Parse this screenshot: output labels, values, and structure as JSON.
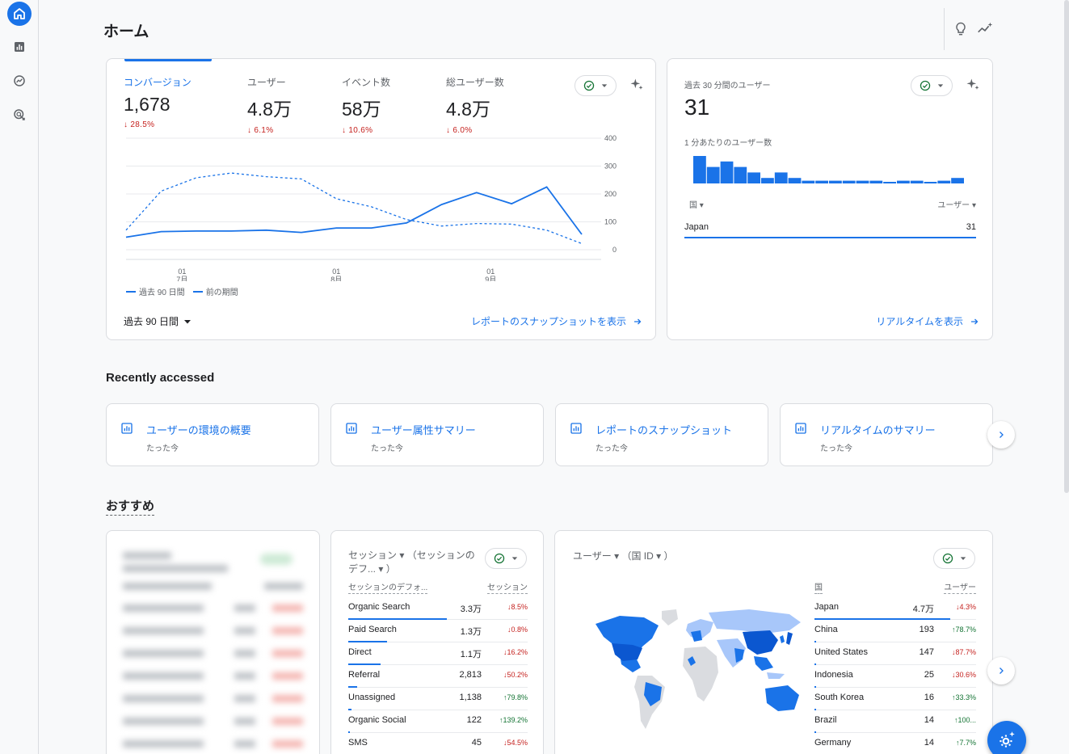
{
  "page": {
    "title": "ホーム"
  },
  "rail": {
    "items": [
      {
        "icon": "home-icon",
        "active": true
      },
      {
        "icon": "reports-icon",
        "active": false
      },
      {
        "icon": "explore-icon",
        "active": false
      },
      {
        "icon": "advertising-icon",
        "active": false
      }
    ]
  },
  "main_card": {
    "metrics": [
      {
        "label": "コンバージョン",
        "value": "1,678",
        "delta": "28.5%",
        "direction": "down"
      },
      {
        "label": "ユーザー",
        "value": "4.8万",
        "delta": "6.1%",
        "direction": "down"
      },
      {
        "label": "イベント数",
        "value": "58万",
        "delta": "10.6%",
        "direction": "down"
      },
      {
        "label": "総ユーザー数",
        "value": "4.8万",
        "delta": "6.0%",
        "direction": "down"
      }
    ],
    "legend": {
      "current": "過去 90 日間",
      "previous": "前の期間"
    },
    "period_select": "過去 90 日間",
    "snapshot_link": "レポートのスナップショットを表示"
  },
  "chart_data": {
    "type": "line",
    "x_ticks": [
      {
        "day": "01",
        "month": "7月"
      },
      {
        "day": "01",
        "month": "8月"
      },
      {
        "day": "01",
        "month": "9月"
      }
    ],
    "y_ticks": [
      "400",
      "300",
      "200",
      "100",
      "0"
    ],
    "ylim": [
      0,
      400
    ],
    "series": [
      {
        "name": "過去 90 日間",
        "style": "solid",
        "values": [
          45,
          65,
          67,
          67,
          70,
          62,
          78,
          78,
          96,
          162,
          205,
          165,
          225,
          55
        ]
      },
      {
        "name": "前の期間",
        "style": "dashed",
        "values": [
          70,
          210,
          258,
          275,
          262,
          254,
          183,
          154,
          108,
          85,
          94,
          92,
          70,
          22
        ]
      }
    ],
    "color": "#1a73e8"
  },
  "realtime_card": {
    "label": "過去 30 分間のユーザー",
    "value": "31",
    "sub_label": "1 分あたりのユーザー数",
    "bars": [
      5,
      3,
      4,
      3,
      2,
      1,
      2,
      1,
      0.5,
      0.5,
      0.5,
      0.5,
      0.5,
      0.5,
      0.3,
      0.5,
      0.5,
      0.3,
      0.5,
      1
    ],
    "col_country": "国",
    "col_users": "ユーザー",
    "row": {
      "country": "Japan",
      "users": "31"
    },
    "link": "リアルタイムを表示"
  },
  "recent": {
    "title": "Recently accessed",
    "items": [
      {
        "title": "ユーザーの環境の概要",
        "sub": "たった今"
      },
      {
        "title": "ユーザー属性サマリー",
        "sub": "たった今"
      },
      {
        "title": "レポートのスナップショット",
        "sub": "たった今"
      },
      {
        "title": "リアルタイムのサマリー",
        "sub": "たった今"
      }
    ]
  },
  "recommended": {
    "title": "おすすめ"
  },
  "session_card": {
    "title": "セッション ▾ （セッションのデフ... ▾ ）",
    "col_channel": "セッションのデフォ...",
    "col_sessions": "セッション",
    "rows": [
      {
        "name": "Organic Search",
        "value": "3.3万",
        "delta": "8.5%",
        "direction": "down",
        "share": 1.0
      },
      {
        "name": "Paid Search",
        "value": "1.3万",
        "delta": "0.8%",
        "direction": "down",
        "share": 0.39
      },
      {
        "name": "Direct",
        "value": "1.1万",
        "delta": "16.2%",
        "direction": "down",
        "share": 0.33
      },
      {
        "name": "Referral",
        "value": "2,813",
        "delta": "50.2%",
        "direction": "down",
        "share": 0.09
      },
      {
        "name": "Unassigned",
        "value": "1,138",
        "delta": "79.8%",
        "direction": "up",
        "share": 0.035
      },
      {
        "name": "Organic Social",
        "value": "122",
        "delta": "139.2%",
        "direction": "up",
        "share": 0.01
      },
      {
        "name": "SMS",
        "value": "45",
        "delta": "54.5%",
        "direction": "down",
        "share": 0.005
      }
    ]
  },
  "geo_card": {
    "title": "ユーザー ▾ （国 ID ▾ ）",
    "col_country": "国",
    "col_users": "ユーザー",
    "rows": [
      {
        "name": "Japan",
        "value": "4.7万",
        "delta": "4.3%",
        "direction": "down",
        "share": 1.0
      },
      {
        "name": "China",
        "value": "193",
        "delta": "78.7%",
        "direction": "up",
        "share": 0.01
      },
      {
        "name": "United States",
        "value": "147",
        "delta": "87.7%",
        "direction": "down",
        "share": 0.008
      },
      {
        "name": "Indonesia",
        "value": "25",
        "delta": "30.6%",
        "direction": "down",
        "share": 0.004
      },
      {
        "name": "South Korea",
        "value": "16",
        "delta": "33.3%",
        "direction": "up",
        "share": 0.003
      },
      {
        "name": "Brazil",
        "value": "14",
        "delta": "100...",
        "direction": "up",
        "share": 0.003
      },
      {
        "name": "Germany",
        "value": "14",
        "delta": "7.7%",
        "direction": "up",
        "share": 0.003
      }
    ]
  }
}
